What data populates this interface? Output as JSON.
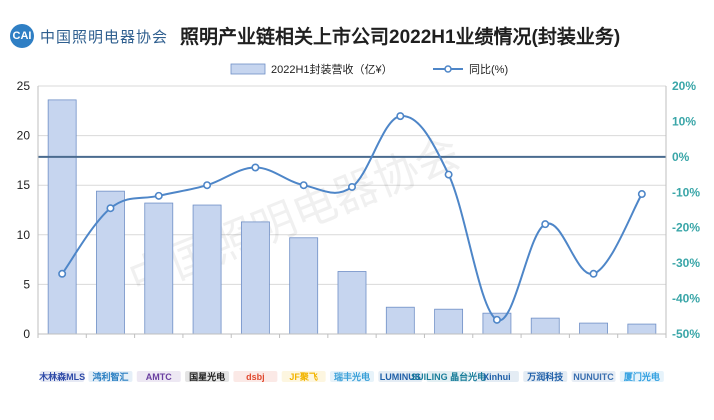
{
  "header": {
    "title": "照明产业链相关上市公司2022H1业绩情况(封装业务)",
    "logo_text": "中国照明电器协会",
    "logo_mark": "CAI"
  },
  "watermark": {
    "text": "中国照明电器协会"
  },
  "colors": {
    "bar_fill": "#c6d5ef",
    "bar_stroke": "#6f8fc6",
    "line": "#4e86c8",
    "zero_line": "#4a6b8f",
    "left_axis": "#1f1f1f",
    "right_axis": "#3aa6a8",
    "grid": "#d9d9d9"
  },
  "chart_data": {
    "type": "bar",
    "legend_position": "top",
    "grid": true,
    "categories": [
      "木林森MLS",
      "鸿利智汇",
      "AMTC",
      "国星光电",
      "dsbj",
      "JF聚飞",
      "瑞丰光电",
      "LUMINUS",
      "SUILING 晶台光电",
      "Xinhui",
      "万润科技",
      "NUNUITC",
      "厦门光电"
    ],
    "series": [
      {
        "name": "2022H1封装营收（亿¥）",
        "chart": "bar",
        "axis": "left",
        "values": [
          23.6,
          14.4,
          13.2,
          13.0,
          11.3,
          9.7,
          6.3,
          2.7,
          2.5,
          2.1,
          1.6,
          1.1,
          1.0
        ]
      },
      {
        "name": "同比(%)",
        "chart": "line",
        "axis": "right",
        "values": [
          -33.0,
          -14.5,
          -11.0,
          -8.0,
          -3.0,
          -8.0,
          -8.5,
          11.5,
          -5.0,
          -46.0,
          -19.0,
          -33.0,
          -10.5
        ]
      }
    ],
    "left_axis": {
      "ylim": [
        0,
        25
      ],
      "ticks": [
        "0",
        "5",
        "10",
        "15",
        "20",
        "25"
      ]
    },
    "right_axis": {
      "ylim": [
        -50,
        20
      ],
      "ticks": [
        "-50%",
        "-40%",
        "-30%",
        "-20%",
        "-10%",
        "0%",
        "10%",
        "20%"
      ]
    }
  }
}
